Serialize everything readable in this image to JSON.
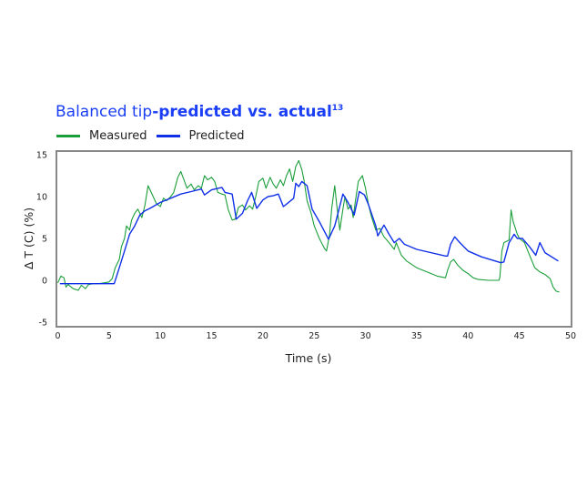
{
  "chart_data": {
    "type": "line",
    "title_regular": "Balanced tip",
    "title_bold": "-predicted vs. actual",
    "title_superscript": "13",
    "xlabel": "Time (s)",
    "ylabel": "Δ T (C) (%)",
    "xlim": [
      0,
      50
    ],
    "ylim": [
      -5.6,
      15.3
    ],
    "xticks": [
      0,
      5,
      10,
      15,
      20,
      25,
      30,
      35,
      40,
      45,
      50
    ],
    "yticks": [
      -5,
      0,
      5,
      10,
      15
    ],
    "grid": false,
    "legend_placement": "top-left",
    "series": [
      {
        "name": "Measured",
        "color": "#1a9e3a",
        "x": [
          0,
          0.3,
          0.6,
          0.8,
          1,
          1.5,
          2,
          2.3,
          2.7,
          3,
          3.5,
          4,
          4.5,
          5,
          5.3,
          5.6,
          6,
          6.2,
          6.5,
          6.7,
          7,
          7.2,
          7.5,
          7.8,
          8.2,
          8.5,
          8.8,
          9,
          9.3,
          9.6,
          10,
          10.3,
          10.6,
          11,
          11.3,
          11.7,
          12,
          12.3,
          12.6,
          13,
          13.3,
          13.7,
          14,
          14.3,
          14.6,
          15,
          15.3,
          15.6,
          16,
          16.3,
          16.6,
          17,
          17.3,
          17.6,
          18,
          18.3,
          18.7,
          19,
          19.3,
          19.6,
          20,
          20.3,
          20.7,
          21,
          21.3,
          21.7,
          22,
          22.3,
          22.6,
          22.9,
          23.2,
          23.5,
          23.8,
          24,
          24.3,
          24.7,
          25,
          25.5,
          26,
          26.2,
          26.5,
          26.7,
          27,
          27.2,
          27.5,
          27.8,
          28,
          28.3,
          28.6,
          28.8,
          29,
          29.3,
          29.7,
          30,
          30.3,
          30.6,
          31,
          31.4,
          31.8,
          32.3,
          32.8,
          33,
          33.5,
          34,
          35,
          36,
          37,
          37.8,
          38,
          38.3,
          38.6,
          39,
          39.5,
          40,
          40.5,
          41,
          42,
          43,
          43.1,
          43.3,
          43.5,
          44,
          44.2,
          44.4,
          44.8,
          45,
          45.5,
          46,
          46.5,
          47,
          47.5,
          48,
          48.3,
          48.6,
          48.9
        ],
        "y": [
          -0.3,
          0.5,
          0.3,
          -0.8,
          -0.5,
          -1.0,
          -1.2,
          -0.6,
          -1.0,
          -0.5,
          -0.4,
          -0.4,
          -0.3,
          -0.2,
          0.2,
          1.5,
          2.5,
          4,
          5,
          6.5,
          6,
          7.2,
          8,
          8.5,
          7.5,
          9,
          11.3,
          10.8,
          10,
          9.2,
          8.8,
          9.8,
          9.5,
          10,
          10.5,
          12.3,
          13,
          12,
          11,
          11.5,
          10.8,
          11.3,
          11,
          12.5,
          12,
          12.3,
          11.8,
          10.5,
          10.3,
          10.2,
          8.5,
          7.2,
          7.3,
          8.7,
          9,
          8.4,
          8.9,
          8.5,
          10,
          11.8,
          12.2,
          11,
          12.3,
          11.5,
          11,
          12,
          11.3,
          12.5,
          13.3,
          11.8,
          13.6,
          14.3,
          13.2,
          12,
          9.5,
          8,
          6.5,
          5,
          3.8,
          3.5,
          5.5,
          8.5,
          11.3,
          9,
          6,
          8.5,
          10,
          8.5,
          9,
          7.5,
          9.3,
          11.8,
          12.5,
          11,
          9,
          7.5,
          6,
          6.2,
          5.2,
          4.5,
          3.7,
          4.5,
          3,
          2.3,
          1.5,
          1,
          0.5,
          0.3,
          1.2,
          2.2,
          2.5,
          1.8,
          1.2,
          0.8,
          0.3,
          0.1,
          0,
          0,
          0.3,
          3.5,
          4.5,
          4.8,
          8.4,
          7,
          5.5,
          5,
          4.5,
          3,
          1.5,
          1,
          0.7,
          0.2,
          -0.8,
          -1.3,
          -1.4
        ]
      },
      {
        "name": "Predicted",
        "color": "#1030e8",
        "x": [
          0.2,
          5.5,
          6,
          6.5,
          7,
          7.5,
          8,
          8.5,
          9,
          10,
          11,
          12,
          13,
          14,
          14.3,
          15,
          16,
          16.3,
          17,
          17.4,
          18,
          18.5,
          18.9,
          19.4,
          20,
          20.5,
          21,
          21.5,
          22,
          22.5,
          23,
          23.2,
          23.5,
          23.8,
          24.3,
          24.8,
          25.5,
          26.4,
          27,
          27.8,
          28.3,
          28.9,
          29.4,
          29.9,
          30.3,
          31,
          31.2,
          31.8,
          32.3,
          32.8,
          33.3,
          33.8,
          35,
          37.8,
          38,
          38.3,
          38.7,
          39.2,
          40,
          41.3,
          43.2,
          43.5,
          44,
          44.5,
          44.8,
          45.3,
          46,
          46.6,
          47,
          47.5,
          48.8
        ],
        "y": [
          -0.4,
          -0.4,
          1.5,
          3.5,
          5.5,
          6.5,
          7.8,
          8.3,
          8.6,
          9.3,
          9.8,
          10.3,
          10.6,
          10.9,
          10.2,
          10.8,
          11.1,
          10.5,
          10.3,
          7.3,
          8,
          9.5,
          10.5,
          8.6,
          9.6,
          10,
          10.1,
          10.3,
          8.8,
          9.3,
          9.8,
          11.6,
          11.2,
          11.8,
          11.3,
          8.5,
          7,
          4.9,
          6.5,
          10.3,
          9.3,
          7.8,
          10.6,
          10.2,
          9,
          6.5,
          5.3,
          6.6,
          5.5,
          4.5,
          5,
          4.3,
          3.7,
          2.9,
          2.9,
          4.3,
          5.2,
          4.5,
          3.5,
          2.8,
          2.1,
          2.2,
          4.5,
          5.5,
          5,
          5,
          4,
          3,
          4.5,
          3.3,
          2.3
        ]
      }
    ]
  }
}
